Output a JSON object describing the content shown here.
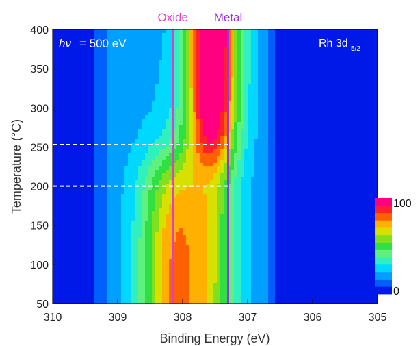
{
  "chart_data": {
    "type": "heatmap",
    "title": "",
    "xlabel": "Binding Energy (eV)",
    "ylabel": "Temperature (°C)",
    "xlim": [
      310,
      305
    ],
    "ylim": [
      50,
      400
    ],
    "x_reversed": true,
    "x_ticks": [
      "310",
      "309",
      "308",
      "307",
      "306",
      "305"
    ],
    "y_ticks": [
      "50",
      "100",
      "150",
      "200",
      "250",
      "300",
      "350",
      "400"
    ],
    "annotations": {
      "photon_energy_symbol": "hν",
      "photon_energy_value": "= 500 eV",
      "core_level_main": "Rh 3d",
      "core_level_sub": "5/2"
    },
    "reference_lines": [
      {
        "label": "Oxide",
        "x": 308.15,
        "color": "#e040c8"
      },
      {
        "label": "Metal",
        "x": 307.3,
        "color": "#9a30e8"
      }
    ],
    "temperature_markers": [
      {
        "y": 253,
        "style": "dashed",
        "color": "#ffffff"
      },
      {
        "y": 200,
        "style": "dashed",
        "color": "#ffffff"
      }
    ],
    "colorbar": {
      "min_label": "0",
      "max_label": "100",
      "min": 0,
      "max": 100,
      "colors": [
        "#0018e8",
        "#0060ff",
        "#00a0ff",
        "#00d8ff",
        "#30f0c0",
        "#60f080",
        "#30e040",
        "#80e020",
        "#d8e000",
        "#ffb000",
        "#ff6000",
        "#ff2030",
        "#ff0080"
      ]
    },
    "peaks": [
      {
        "name": "metal",
        "center_eV": 307.55,
        "width_eV": 0.28,
        "intensity_by_temp": [
          [
            50,
            32
          ],
          [
            150,
            33
          ],
          [
            200,
            36
          ],
          [
            230,
            52
          ],
          [
            260,
            72
          ],
          [
            300,
            86
          ],
          [
            350,
            94
          ],
          [
            400,
            96
          ]
        ]
      },
      {
        "name": "oxide",
        "center_eV": 308.15,
        "width_eV": 0.35,
        "intensity_by_temp": [
          [
            50,
            55
          ],
          [
            100,
            55
          ],
          [
            150,
            52
          ],
          [
            200,
            42
          ],
          [
            230,
            28
          ],
          [
            260,
            12
          ],
          [
            300,
            4
          ],
          [
            400,
            0
          ]
        ]
      }
    ],
    "background_level": 20
  }
}
